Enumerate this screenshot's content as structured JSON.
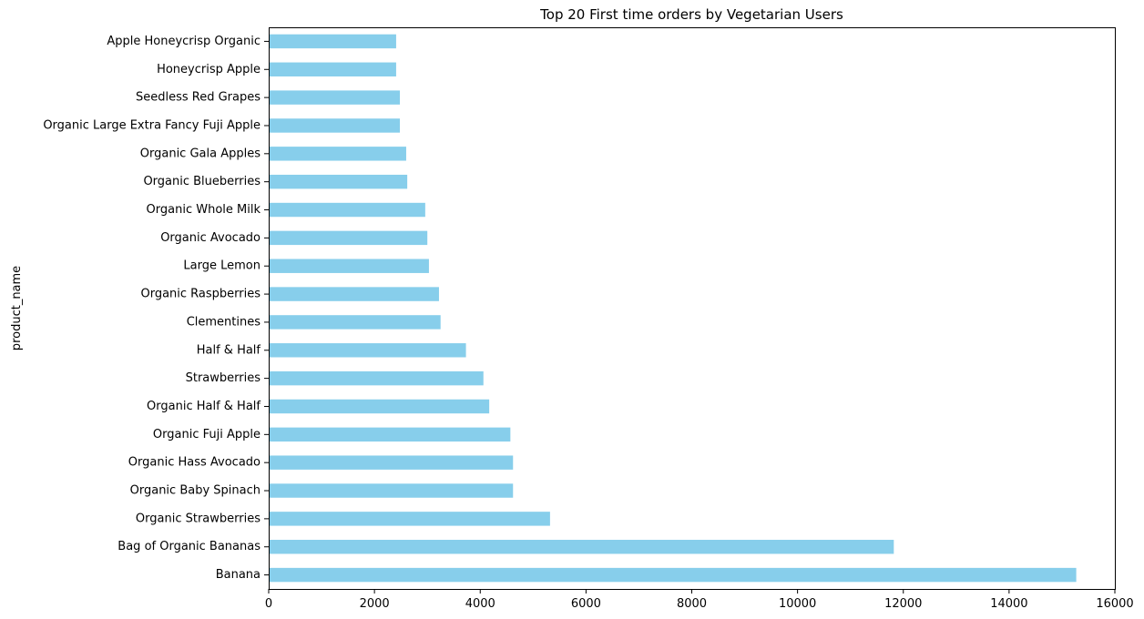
{
  "chart_data": {
    "type": "bar",
    "orientation": "horizontal",
    "title": "Top 20 First time orders by Vegetarian Users",
    "xlabel": "",
    "ylabel": "product_name",
    "xlim": [
      0,
      16000
    ],
    "xticks": [
      0,
      2000,
      4000,
      6000,
      8000,
      10000,
      12000,
      14000,
      16000
    ],
    "grid": false,
    "bar_color": "#87ceeb",
    "categories": [
      "Banana",
      "Bag of Organic Bananas",
      "Organic Strawberries",
      "Organic Baby Spinach",
      "Organic Hass Avocado",
      "Organic Fuji Apple",
      "Organic Half & Half",
      "Strawberries",
      "Half & Half",
      "Clementines",
      "Organic Raspberries",
      "Large Lemon",
      "Organic Avocado",
      "Organic Whole Milk",
      "Organic Blueberries",
      "Organic Gala Apples",
      "Organic Large Extra Fancy Fuji Apple",
      "Seedless Red Grapes",
      "Honeycrisp Apple",
      "Apple Honeycrisp Organic"
    ],
    "values": [
      15270,
      11820,
      5320,
      4620,
      4620,
      4570,
      4170,
      4060,
      3730,
      3250,
      3220,
      3030,
      3000,
      2960,
      2620,
      2600,
      2480,
      2480,
      2410,
      2410
    ]
  }
}
